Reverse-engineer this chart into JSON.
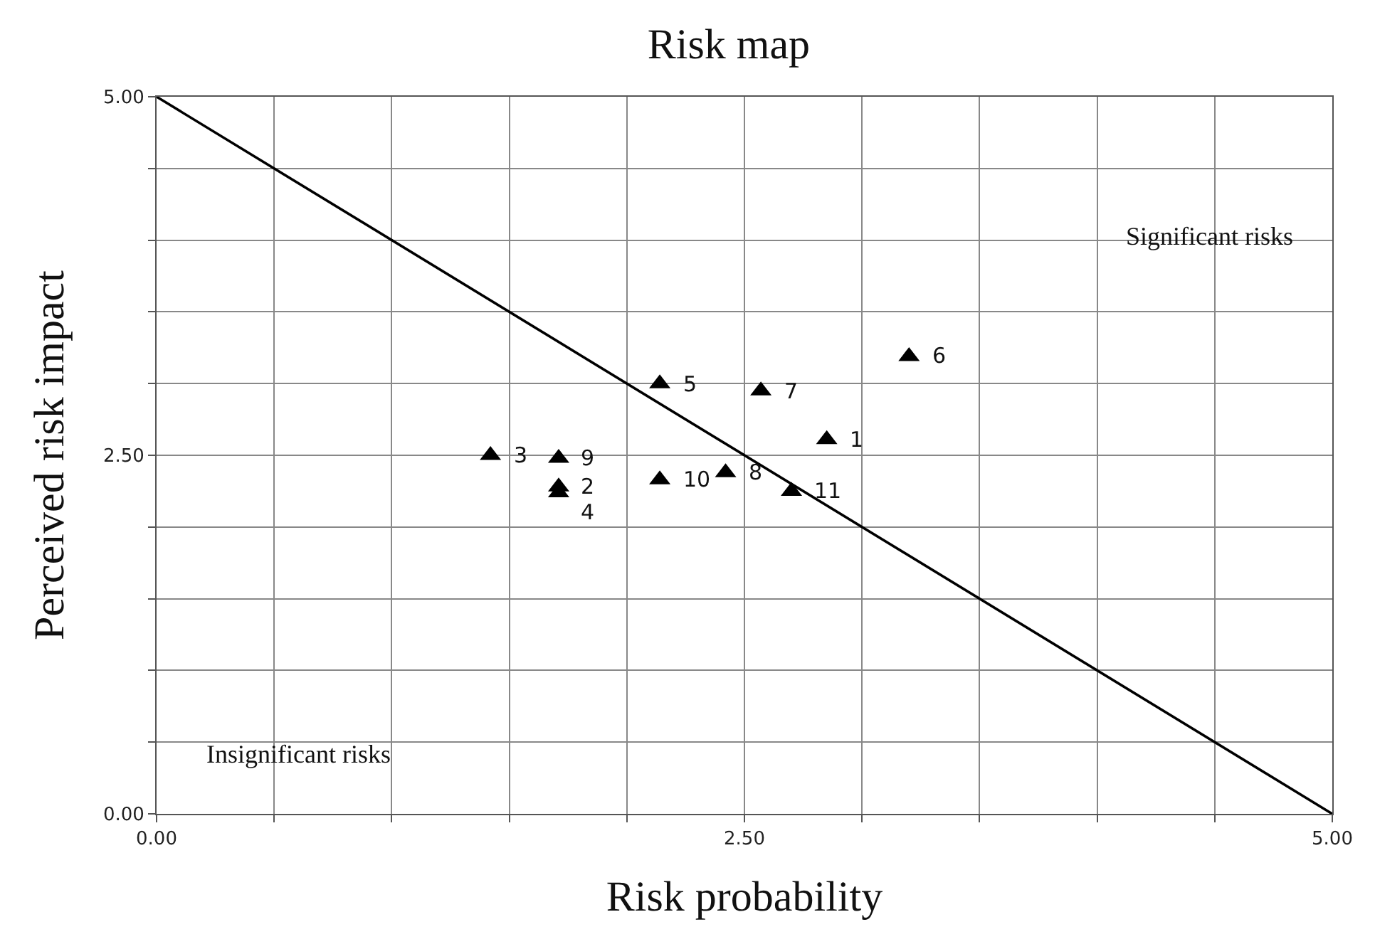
{
  "chart_data": {
    "type": "scatter",
    "title": "Risk map",
    "xlabel": "Risk probability",
    "ylabel": "Perceived risk impact",
    "xlim": [
      0,
      5
    ],
    "ylim": [
      0,
      5
    ],
    "xticks": [
      {
        "value": 0,
        "label": "0.00"
      },
      {
        "value": 0.5,
        "label": null
      },
      {
        "value": 1,
        "label": null
      },
      {
        "value": 1.5,
        "label": null
      },
      {
        "value": 2,
        "label": null
      },
      {
        "value": 2.5,
        "label": "2.50"
      },
      {
        "value": 3,
        "label": null
      },
      {
        "value": 3.5,
        "label": null
      },
      {
        "value": 4,
        "label": null
      },
      {
        "value": 4.5,
        "label": null
      },
      {
        "value": 5,
        "label": "5.00"
      }
    ],
    "yticks": [
      {
        "value": 0,
        "label": "0.00"
      },
      {
        "value": 0.5,
        "label": null
      },
      {
        "value": 1,
        "label": null
      },
      {
        "value": 1.5,
        "label": null
      },
      {
        "value": 2,
        "label": null
      },
      {
        "value": 2.5,
        "label": "2.50"
      },
      {
        "value": 3,
        "label": null
      },
      {
        "value": 3.5,
        "label": null
      },
      {
        "value": 4,
        "label": null
      },
      {
        "value": 4.5,
        "label": null
      },
      {
        "value": 5,
        "label": "5.00"
      }
    ],
    "grid": true,
    "series": [
      {
        "marker": "triangle",
        "color": "#000000",
        "x": [
          2.85,
          1.71,
          1.42,
          1.71,
          2.14,
          3.2,
          2.57,
          2.42,
          1.71,
          2.14,
          2.7
        ],
        "values": [
          2.61,
          2.28,
          2.5,
          2.24,
          3.0,
          3.19,
          2.95,
          2.38,
          2.48,
          2.33,
          2.25
        ]
      },
      {
        "type": "line",
        "marker": "none",
        "color": "#000000",
        "x": [
          0,
          5
        ],
        "values": [
          5,
          0
        ]
      }
    ],
    "annotations": [
      "Significant risks",
      "Insignificant risks",
      {
        "text": "1",
        "x": 2.85,
        "y": 2.61
      },
      {
        "text": "2",
        "x": 1.71,
        "y": 2.28
      },
      {
        "text": "3",
        "x": 1.42,
        "y": 2.5
      },
      {
        "text": "4",
        "x": 1.71,
        "y": 2.24
      },
      {
        "text": "5",
        "x": 2.14,
        "y": 3.0
      },
      {
        "text": "6",
        "x": 3.2,
        "y": 3.19
      },
      {
        "text": "7",
        "x": 2.57,
        "y": 2.95
      },
      {
        "text": "8",
        "x": 2.42,
        "y": 2.38
      },
      {
        "text": "9",
        "x": 1.71,
        "y": 2.48
      },
      {
        "text": "10",
        "x": 2.14,
        "y": 2.33
      },
      {
        "text": "11",
        "x": 2.7,
        "y": 2.25
      }
    ]
  }
}
